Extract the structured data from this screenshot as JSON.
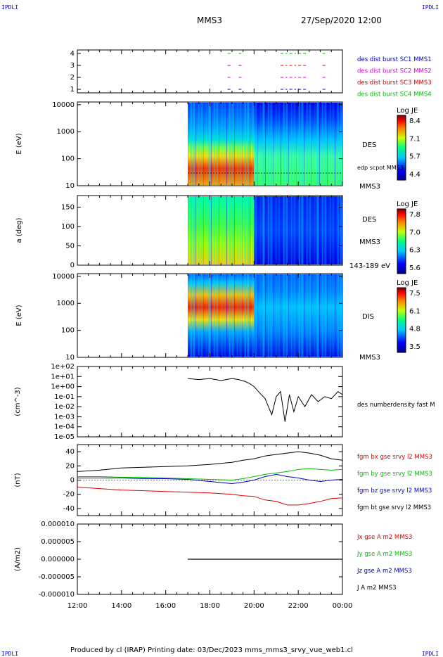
{
  "header": {
    "corner_left": "IPDLI",
    "corner_right": "IPDLI",
    "spacecraft": "MMS3",
    "datetime": "27/Sep/2020 12:00"
  },
  "footer": {
    "text": "Produced by cl (IRAP)   Printing date: 03/Dec/2023   mms_mms3_srvy_vue_web1.cl",
    "corner_left": "IPDLI",
    "corner_right": "IPDLI"
  },
  "time_axis": {
    "ticks": [
      "12:00",
      "14:00",
      "16:00",
      "18:00",
      "20:00",
      "22:00",
      "00:00"
    ],
    "hours": [
      0,
      2,
      4,
      6,
      8,
      10,
      12
    ]
  },
  "colors": {
    "red": "#e00000",
    "green": "#00c000",
    "blue": "#0000cc",
    "magenta": "#dd00dd",
    "black": "#000000"
  },
  "chart_data": [
    {
      "type": "scatter",
      "panel": "burst-availability",
      "ylim": [
        1,
        4
      ],
      "yticks": [
        "1",
        "2",
        "3",
        "4"
      ],
      "legend": [
        {
          "label": "des dist burst SC1 MMS1",
          "color": "#0000cc"
        },
        {
          "label": "des dist burst SC2 MMS2",
          "color": "#dd00dd"
        },
        {
          "label": "des dist burst SC3 MMS3",
          "color": "#e00000"
        },
        {
          "label": "des dist burst SC4 MMS4",
          "color": "#00c000"
        }
      ],
      "segments_hours": [
        [
          6.8,
          7.0
        ],
        [
          7.3,
          7.5
        ],
        [
          9.2,
          9.5
        ],
        [
          9.6,
          9.9
        ],
        [
          10.0,
          10.4
        ],
        [
          11.1,
          11.3
        ]
      ]
    },
    {
      "type": "heatmap",
      "panel": "des-energy",
      "ylabel": "E (eV)",
      "yticks": [
        "10",
        "100",
        "1000",
        "10000"
      ],
      "colorbar": {
        "title": "Log JE",
        "ticks": [
          "8.4",
          "7.1",
          "5.7",
          "4.4"
        ],
        "range": [
          4.4,
          8.4
        ]
      },
      "labels": [
        "DES",
        "edp scpot MMS3",
        "MMS3"
      ],
      "data_start_hour": 5.0
    },
    {
      "type": "heatmap",
      "panel": "des-pitch-angle",
      "ylabel": "a (deg)",
      "yticks": [
        "0",
        "50",
        "100",
        "150"
      ],
      "colorbar": {
        "title": "Log JE",
        "ticks": [
          "7.8",
          "7.0",
          "6.3",
          "5.6"
        ],
        "range": [
          5.6,
          7.8
        ]
      },
      "labels": [
        "DES",
        "MMS3",
        "143-189 eV"
      ],
      "data_start_hour": 5.0
    },
    {
      "type": "heatmap",
      "panel": "dis-energy",
      "ylabel": "E (eV)",
      "yticks": [
        "10",
        "100",
        "1000",
        "10000"
      ],
      "colorbar": {
        "title": "Log JE",
        "ticks": [
          "7.5",
          "6.1",
          "4.8",
          "3.5"
        ],
        "range": [
          3.5,
          7.5
        ]
      },
      "labels": [
        "DIS",
        "MMS3"
      ],
      "data_start_hour": 5.0
    },
    {
      "type": "line",
      "panel": "density",
      "ylabel": "(cm^-3)",
      "yticks": [
        "1e+02",
        "1e+01",
        "1e+00",
        "1e-01",
        "1e-02",
        "1e-03",
        "1e-04",
        "1e-05"
      ],
      "ylim_log10": [
        -5,
        2
      ],
      "legend": [
        "des numberdensity fast M"
      ],
      "x_hours": [
        5.0,
        5.5,
        6.0,
        6.5,
        7.0,
        7.3,
        7.6,
        7.8,
        8.0,
        8.2,
        8.5,
        8.8,
        9.0,
        9.2,
        9.4,
        9.6,
        9.8,
        10.0,
        10.3,
        10.6,
        10.9,
        11.2,
        11.5,
        11.8,
        12.0
      ],
      "log10_values": [
        0.8,
        0.7,
        0.8,
        0.6,
        0.8,
        0.7,
        0.5,
        0.3,
        0.0,
        -0.5,
        -1.2,
        -2.8,
        -1.0,
        -0.5,
        -3.5,
        -0.8,
        -2.5,
        -1.0,
        -2.0,
        -0.8,
        -1.5,
        -1.0,
        -1.2,
        -0.5,
        -0.8
      ]
    },
    {
      "type": "line",
      "panel": "magnetic-field",
      "ylabel": "(nT)",
      "yticks": [
        "40",
        "20",
        "0",
        "-20",
        "-40"
      ],
      "ylim": [
        -50,
        50
      ],
      "x_hours": [
        0,
        1,
        2,
        3,
        4,
        5,
        6,
        7,
        7.5,
        8,
        8.5,
        9,
        9.5,
        10,
        10.5,
        11,
        11.5,
        12
      ],
      "series": [
        {
          "name": "fgm bx gse srvy l2 MMS3",
          "color": "#e00000",
          "values": [
            -10,
            -12,
            -14,
            -15,
            -16,
            -17,
            -18,
            -20,
            -22,
            -23,
            -28,
            -30,
            -35,
            -35,
            -33,
            -30,
            -26,
            -25
          ]
        },
        {
          "name": "fgm by gse srvy l2 MMS3",
          "color": "#00c000",
          "values": [
            5,
            5,
            4,
            4,
            3,
            2,
            1,
            0,
            2,
            5,
            8,
            10,
            12,
            15,
            16,
            15,
            14,
            15
          ]
        },
        {
          "name": "fgm bz gse srvy l2 MMS3",
          "color": "#0000cc",
          "values": [
            3,
            3,
            3,
            2,
            2,
            1,
            -2,
            -5,
            -3,
            0,
            5,
            8,
            5,
            3,
            0,
            -2,
            0,
            1
          ]
        },
        {
          "name": "fgm bt gse srvy l2 MMS3",
          "color": "#000000",
          "values": [
            12,
            14,
            17,
            18,
            19,
            20,
            22,
            25,
            28,
            30,
            34,
            36,
            38,
            40,
            38,
            35,
            30,
            28
          ]
        }
      ]
    },
    {
      "type": "line",
      "panel": "current-density",
      "ylabel": "(A/m2)",
      "yticks": [
        "0.000010",
        "0.000005",
        "0.000000",
        "-0.000005",
        "-0.000010"
      ],
      "ylim": [
        -1e-05,
        1e-05
      ],
      "legend": [
        {
          "label": "Jx gse A m2 MMS3",
          "color": "#e00000"
        },
        {
          "label": "Jy gse A m2 MMS3",
          "color": "#00c000"
        },
        {
          "label": "Jz gse A m2 MMS3",
          "color": "#0000cc"
        },
        {
          "label": "J A m2 MMS3",
          "color": "#000000"
        }
      ],
      "x_hours": [
        5.0,
        12.0
      ],
      "values": [
        0,
        0
      ]
    }
  ]
}
